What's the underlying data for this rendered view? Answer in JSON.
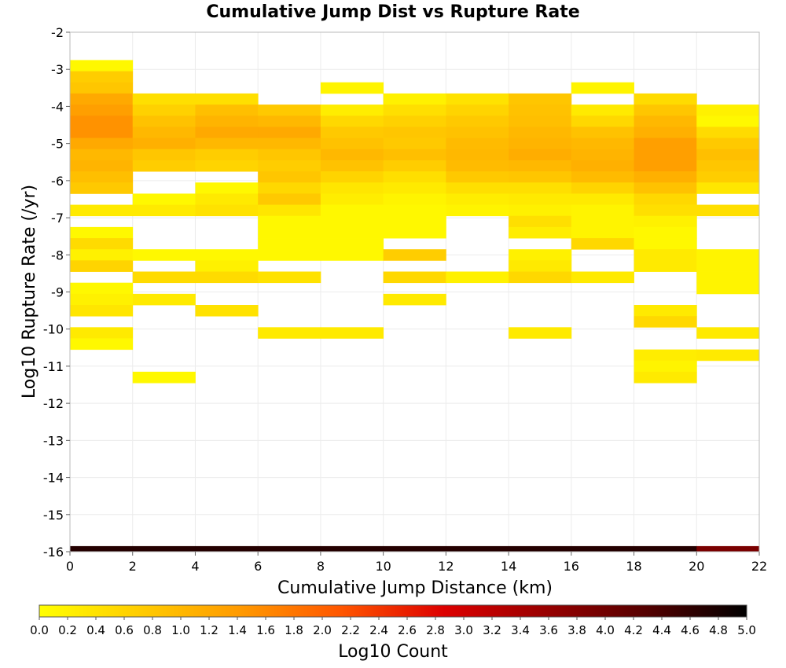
{
  "chart_data": {
    "type": "heatmap",
    "title": "Cumulative Jump Dist vs Rupture Rate",
    "xlabel": "Cumulative Jump Distance (km)",
    "ylabel": "Log10 Rupture Rate (/yr)",
    "xlim": [
      0,
      22
    ],
    "ylim": [
      -16,
      -2
    ],
    "x_ticks": [
      0,
      2,
      4,
      6,
      8,
      10,
      12,
      14,
      16,
      18,
      20,
      22
    ],
    "y_ticks": [
      -2,
      -3,
      -4,
      -5,
      -6,
      -7,
      -8,
      -9,
      -10,
      -11,
      -12,
      -13,
      -14,
      -15,
      -16
    ],
    "grid": true,
    "x_bin_width": 2,
    "y_bin_height": 0.3,
    "colorbar": {
      "label": "Log10 Count",
      "range": [
        0.0,
        5.0
      ],
      "ticks": [
        "0.0",
        "0.2",
        "0.4",
        "0.6",
        "0.8",
        "1.0",
        "1.2",
        "1.4",
        "1.6",
        "1.8",
        "2.0",
        "2.2",
        "2.4",
        "2.6",
        "2.8",
        "3.0",
        "3.2",
        "3.4",
        "3.6",
        "3.8",
        "4.0",
        "4.2",
        "4.4",
        "4.6",
        "4.8",
        "5.0"
      ],
      "colors": [
        "#ffff00",
        "#ffcc00",
        "#ff9900",
        "#ff5500",
        "#dd0000",
        "#990000",
        "#550000",
        "#000000"
      ]
    },
    "columns": [
      {
        "x": 0,
        "cells": [
          [
            -2.9,
            0.1
          ],
          [
            -3.2,
            0.7
          ],
          [
            -3.5,
            0.8
          ],
          [
            -3.8,
            1.2
          ],
          [
            -4.1,
            1.35
          ],
          [
            -4.4,
            1.5
          ],
          [
            -4.7,
            1.5
          ],
          [
            -5.0,
            1.2
          ],
          [
            -5.3,
            1.0
          ],
          [
            -5.6,
            1.05
          ],
          [
            -5.9,
            0.9
          ],
          [
            -6.2,
            0.75
          ],
          [
            -6.8,
            0.3
          ],
          [
            -7.4,
            0.1
          ],
          [
            -7.7,
            0.5
          ],
          [
            -8.0,
            0.2
          ],
          [
            -8.3,
            0.6
          ],
          [
            -8.9,
            0.1
          ],
          [
            -9.2,
            0.2
          ],
          [
            -9.5,
            0.35
          ],
          [
            -10.1,
            0.3
          ],
          [
            -10.4,
            0.1
          ],
          [
            -16.0,
            4.7
          ]
        ]
      },
      {
        "x": 2,
        "cells": [
          [
            -3.8,
            0.45
          ],
          [
            -4.1,
            0.65
          ],
          [
            -4.4,
            0.85
          ],
          [
            -4.7,
            1.0
          ],
          [
            -5.0,
            1.1
          ],
          [
            -5.3,
            0.8
          ],
          [
            -5.6,
            0.7
          ],
          [
            -6.5,
            0.1
          ],
          [
            -6.8,
            0.3
          ],
          [
            -8.0,
            0.1
          ],
          [
            -8.6,
            0.5
          ],
          [
            -9.2,
            0.3
          ],
          [
            -11.3,
            0.1
          ],
          [
            -16.0,
            4.7
          ]
        ]
      },
      {
        "x": 4,
        "cells": [
          [
            -3.8,
            0.45
          ],
          [
            -4.1,
            0.9
          ],
          [
            -4.4,
            1.05
          ],
          [
            -4.7,
            1.2
          ],
          [
            -5.0,
            1.0
          ],
          [
            -5.3,
            0.7
          ],
          [
            -5.6,
            0.6
          ],
          [
            -6.2,
            0.1
          ],
          [
            -6.5,
            0.3
          ],
          [
            -6.8,
            0.4
          ],
          [
            -8.0,
            0.1
          ],
          [
            -8.3,
            0.2
          ],
          [
            -8.6,
            0.5
          ],
          [
            -9.5,
            0.4
          ],
          [
            -16.0,
            4.7
          ]
        ]
      },
      {
        "x": 6,
        "cells": [
          [
            -4.1,
            0.75
          ],
          [
            -4.4,
            1.0
          ],
          [
            -4.7,
            1.2
          ],
          [
            -5.0,
            1.0
          ],
          [
            -5.3,
            0.8
          ],
          [
            -5.6,
            0.7
          ],
          [
            -5.9,
            0.8
          ],
          [
            -6.2,
            0.55
          ],
          [
            -6.5,
            0.75
          ],
          [
            -6.8,
            0.35
          ],
          [
            -7.1,
            0.1
          ],
          [
            -7.4,
            0.1
          ],
          [
            -7.7,
            0.1
          ],
          [
            -8.0,
            0.1
          ],
          [
            -8.6,
            0.4
          ],
          [
            -10.1,
            0.3
          ],
          [
            -16.0,
            4.7
          ]
        ]
      },
      {
        "x": 8,
        "cells": [
          [
            -3.5,
            0.15
          ],
          [
            -4.1,
            0.25
          ],
          [
            -4.4,
            0.55
          ],
          [
            -4.7,
            0.75
          ],
          [
            -5.0,
            0.85
          ],
          [
            -5.3,
            1.0
          ],
          [
            -5.6,
            0.85
          ],
          [
            -5.9,
            0.6
          ],
          [
            -6.2,
            0.35
          ],
          [
            -6.5,
            0.25
          ],
          [
            -6.8,
            0.1
          ],
          [
            -7.1,
            0.1
          ],
          [
            -7.4,
            0.1
          ],
          [
            -7.7,
            0.1
          ],
          [
            -8.0,
            0.1
          ],
          [
            -10.1,
            0.3
          ],
          [
            -16.0,
            4.7
          ]
        ]
      },
      {
        "x": 10,
        "cells": [
          [
            -3.8,
            0.2
          ],
          [
            -4.1,
            0.45
          ],
          [
            -4.4,
            0.65
          ],
          [
            -4.7,
            0.8
          ],
          [
            -5.0,
            0.75
          ],
          [
            -5.3,
            0.9
          ],
          [
            -5.6,
            0.7
          ],
          [
            -5.9,
            0.45
          ],
          [
            -6.2,
            0.3
          ],
          [
            -6.5,
            0.15
          ],
          [
            -6.8,
            0.1
          ],
          [
            -7.1,
            0.1
          ],
          [
            -7.4,
            0.1
          ],
          [
            -8.0,
            0.7
          ],
          [
            -8.6,
            0.55
          ],
          [
            -9.2,
            0.3
          ],
          [
            -16.0,
            4.7
          ]
        ]
      },
      {
        "x": 12,
        "cells": [
          [
            -3.8,
            0.4
          ],
          [
            -4.1,
            0.6
          ],
          [
            -4.4,
            0.75
          ],
          [
            -4.7,
            0.85
          ],
          [
            -5.0,
            0.95
          ],
          [
            -5.3,
            1.0
          ],
          [
            -5.6,
            0.95
          ],
          [
            -5.9,
            0.75
          ],
          [
            -6.2,
            0.45
          ],
          [
            -6.5,
            0.25
          ],
          [
            -6.8,
            0.15
          ],
          [
            -8.6,
            0.2
          ],
          [
            -16.0,
            4.7
          ]
        ]
      },
      {
        "x": 14,
        "cells": [
          [
            -3.8,
            0.8
          ],
          [
            -4.1,
            0.85
          ],
          [
            -4.4,
            0.9
          ],
          [
            -4.7,
            1.0
          ],
          [
            -5.0,
            1.05
          ],
          [
            -5.3,
            1.15
          ],
          [
            -5.6,
            1.0
          ],
          [
            -5.9,
            0.8
          ],
          [
            -6.2,
            0.45
          ],
          [
            -6.5,
            0.3
          ],
          [
            -6.8,
            0.2
          ],
          [
            -7.1,
            0.45
          ],
          [
            -7.4,
            0.25
          ],
          [
            -8.0,
            0.2
          ],
          [
            -8.3,
            0.3
          ],
          [
            -8.6,
            0.55
          ],
          [
            -10.1,
            0.3
          ],
          [
            -16.0,
            4.7
          ]
        ]
      },
      {
        "x": 16,
        "cells": [
          [
            -3.5,
            0.15
          ],
          [
            -4.1,
            0.3
          ],
          [
            -4.4,
            0.55
          ],
          [
            -4.7,
            0.85
          ],
          [
            -5.0,
            1.0
          ],
          [
            -5.3,
            1.05
          ],
          [
            -5.6,
            1.1
          ],
          [
            -5.9,
            0.95
          ],
          [
            -6.2,
            0.6
          ],
          [
            -6.5,
            0.3
          ],
          [
            -6.8,
            0.15
          ],
          [
            -7.1,
            0.15
          ],
          [
            -7.4,
            0.15
          ],
          [
            -7.7,
            0.55
          ],
          [
            -8.6,
            0.3
          ],
          [
            -16.0,
            4.7
          ]
        ]
      },
      {
        "x": 18,
        "cells": [
          [
            -3.8,
            0.5
          ],
          [
            -4.1,
            0.8
          ],
          [
            -4.4,
            1.0
          ],
          [
            -4.7,
            1.1
          ],
          [
            -5.0,
            1.35
          ],
          [
            -5.3,
            1.35
          ],
          [
            -5.6,
            1.35
          ],
          [
            -5.9,
            1.1
          ],
          [
            -6.2,
            0.85
          ],
          [
            -6.5,
            0.55
          ],
          [
            -6.8,
            0.45
          ],
          [
            -7.1,
            0.2
          ],
          [
            -7.4,
            0.1
          ],
          [
            -7.7,
            0.1
          ],
          [
            -8.0,
            0.3
          ],
          [
            -8.3,
            0.3
          ],
          [
            -9.5,
            0.3
          ],
          [
            -9.8,
            0.55
          ],
          [
            -10.7,
            0.25
          ],
          [
            -11.0,
            0.15
          ],
          [
            -11.3,
            0.3
          ],
          [
            -16.0,
            4.7
          ]
        ]
      },
      {
        "x": 20,
        "cells": [
          [
            -4.1,
            0.2
          ],
          [
            -4.4,
            0.1
          ],
          [
            -4.7,
            0.5
          ],
          [
            -5.0,
            0.75
          ],
          [
            -5.3,
            0.9
          ],
          [
            -5.6,
            0.8
          ],
          [
            -5.9,
            0.7
          ],
          [
            -6.2,
            0.35
          ],
          [
            -6.8,
            0.45
          ],
          [
            -8.0,
            0.15
          ],
          [
            -8.3,
            0.15
          ],
          [
            -8.6,
            0.15
          ],
          [
            -8.9,
            0.15
          ],
          [
            -10.1,
            0.3
          ],
          [
            -10.7,
            0.3
          ],
          [
            -16.0,
            3.9
          ]
        ]
      }
    ]
  }
}
